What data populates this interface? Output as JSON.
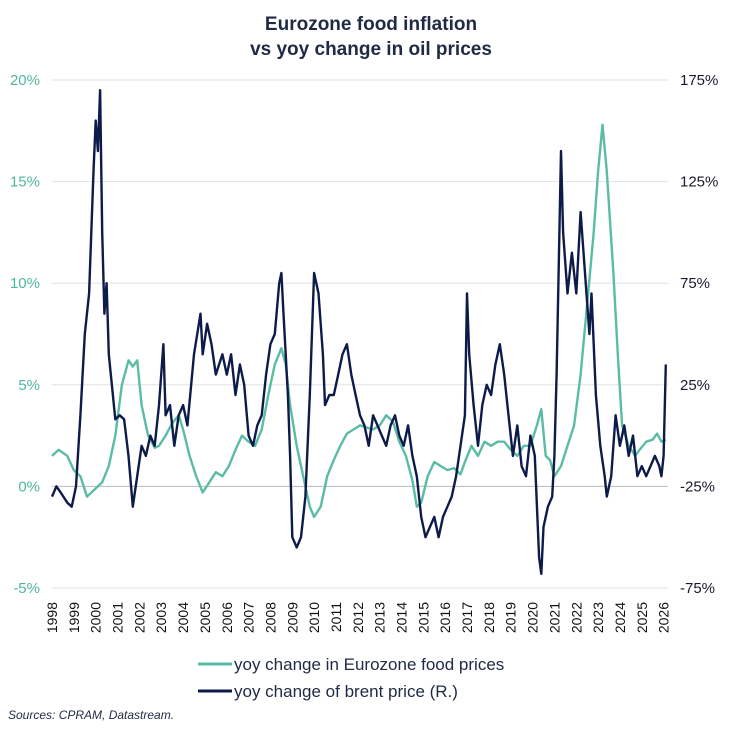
{
  "chart_data": {
    "type": "line",
    "title": [
      "Eurozone food inflation",
      "vs yoy change in oil prices"
    ],
    "x_ticks": [
      "1998",
      "1999",
      "2000",
      "2001",
      "2002",
      "2003",
      "2004",
      "2005",
      "2006",
      "2007",
      "2008",
      "2009",
      "2010",
      "2011",
      "2012",
      "2013",
      "2014",
      "2015",
      "2016",
      "2017",
      "2018",
      "2019",
      "2020",
      "2021",
      "2022",
      "2023",
      "2024",
      "2025",
      "2026"
    ],
    "y_left": {
      "ticks": [
        "-5%",
        "0%",
        "5%",
        "10%",
        "15%",
        "20%"
      ],
      "min": -5,
      "max": 20
    },
    "y_right": {
      "ticks": [
        "-75%",
        "-25%",
        "25%",
        "75%",
        "125%",
        "175%"
      ],
      "min": -75,
      "max": 175
    },
    "colors": {
      "food": "#5bbca5",
      "brent": "#0d1b4b",
      "grid": "#e3e3e3"
    },
    "legend_position": "bottom",
    "series": [
      {
        "name": "yoy change in Eurozone food prices",
        "axis": "left",
        "points": [
          [
            1998.0,
            1.5
          ],
          [
            1998.3,
            1.8
          ],
          [
            1998.7,
            1.5
          ],
          [
            1999.0,
            0.8
          ],
          [
            1999.3,
            0.5
          ],
          [
            1999.6,
            -0.5
          ],
          [
            1999.9,
            -0.2
          ],
          [
            2000.3,
            0.2
          ],
          [
            2000.6,
            1.0
          ],
          [
            2000.9,
            2.5
          ],
          [
            2001.2,
            5.0
          ],
          [
            2001.5,
            6.2
          ],
          [
            2001.7,
            5.9
          ],
          [
            2001.9,
            6.2
          ],
          [
            2002.1,
            4.0
          ],
          [
            2002.4,
            2.5
          ],
          [
            2002.7,
            1.9
          ],
          [
            2002.9,
            2.0
          ],
          [
            2003.2,
            2.5
          ],
          [
            2003.5,
            3.1
          ],
          [
            2003.8,
            3.5
          ],
          [
            2004.0,
            2.8
          ],
          [
            2004.3,
            1.5
          ],
          [
            2004.6,
            0.5
          ],
          [
            2004.9,
            -0.3
          ],
          [
            2005.2,
            0.2
          ],
          [
            2005.5,
            0.7
          ],
          [
            2005.8,
            0.5
          ],
          [
            2006.1,
            1.0
          ],
          [
            2006.4,
            1.8
          ],
          [
            2006.7,
            2.5
          ],
          [
            2007.0,
            2.2
          ],
          [
            2007.3,
            2.0
          ],
          [
            2007.6,
            2.8
          ],
          [
            2007.9,
            4.5
          ],
          [
            2008.2,
            6.0
          ],
          [
            2008.5,
            6.8
          ],
          [
            2008.7,
            6.0
          ],
          [
            2008.9,
            4.0
          ],
          [
            2009.2,
            2.0
          ],
          [
            2009.5,
            0.5
          ],
          [
            2009.8,
            -1.0
          ],
          [
            2010.0,
            -1.5
          ],
          [
            2010.3,
            -1.0
          ],
          [
            2010.6,
            0.5
          ],
          [
            2010.9,
            1.3
          ],
          [
            2011.2,
            2.0
          ],
          [
            2011.5,
            2.6
          ],
          [
            2011.8,
            2.8
          ],
          [
            2012.1,
            3.0
          ],
          [
            2012.4,
            2.9
          ],
          [
            2012.7,
            2.8
          ],
          [
            2013.0,
            3.0
          ],
          [
            2013.3,
            3.5
          ],
          [
            2013.6,
            3.2
          ],
          [
            2013.9,
            2.2
          ],
          [
            2014.2,
            1.5
          ],
          [
            2014.5,
            0.3
          ],
          [
            2014.7,
            -1.0
          ],
          [
            2014.9,
            -0.8
          ],
          [
            2015.2,
            0.5
          ],
          [
            2015.5,
            1.2
          ],
          [
            2015.8,
            1.0
          ],
          [
            2016.1,
            0.8
          ],
          [
            2016.4,
            0.9
          ],
          [
            2016.7,
            0.6
          ],
          [
            2016.9,
            1.2
          ],
          [
            2017.2,
            2.0
          ],
          [
            2017.5,
            1.5
          ],
          [
            2017.8,
            2.2
          ],
          [
            2018.1,
            2.0
          ],
          [
            2018.4,
            2.2
          ],
          [
            2018.7,
            2.2
          ],
          [
            2019.0,
            1.8
          ],
          [
            2019.3,
            1.5
          ],
          [
            2019.6,
            2.0
          ],
          [
            2019.9,
            2.0
          ],
          [
            2020.2,
            3.0
          ],
          [
            2020.4,
            3.8
          ],
          [
            2020.6,
            1.5
          ],
          [
            2020.8,
            1.3
          ],
          [
            2021.0,
            0.5
          ],
          [
            2021.3,
            1.0
          ],
          [
            2021.6,
            2.0
          ],
          [
            2021.9,
            3.0
          ],
          [
            2022.2,
            5.5
          ],
          [
            2022.5,
            9.0
          ],
          [
            2022.8,
            12.5
          ],
          [
            2023.0,
            15.5
          ],
          [
            2023.2,
            17.8
          ],
          [
            2023.4,
            15.5
          ],
          [
            2023.7,
            10.5
          ],
          [
            2023.9,
            6.5
          ],
          [
            2024.1,
            3.0
          ],
          [
            2024.4,
            2.0
          ],
          [
            2024.7,
            1.5
          ],
          [
            2024.9,
            1.8
          ],
          [
            2025.2,
            2.2
          ],
          [
            2025.5,
            2.3
          ],
          [
            2025.7,
            2.6
          ],
          [
            2025.9,
            2.2
          ],
          [
            2026.1,
            2.3
          ]
        ]
      },
      {
        "name": "yoy change of brent price (R.)",
        "axis": "right",
        "points": [
          [
            1998.0,
            -30
          ],
          [
            1998.2,
            -25
          ],
          [
            1998.4,
            -28
          ],
          [
            1998.7,
            -33
          ],
          [
            1998.9,
            -35
          ],
          [
            1999.1,
            -25
          ],
          [
            1999.3,
            10
          ],
          [
            1999.5,
            50
          ],
          [
            1999.7,
            70
          ],
          [
            1999.9,
            130
          ],
          [
            2000.0,
            155
          ],
          [
            2000.1,
            140
          ],
          [
            2000.2,
            170
          ],
          [
            2000.3,
            100
          ],
          [
            2000.4,
            60
          ],
          [
            2000.5,
            75
          ],
          [
            2000.6,
            40
          ],
          [
            2000.9,
            8
          ],
          [
            2001.1,
            10
          ],
          [
            2001.3,
            8
          ],
          [
            2001.5,
            -10
          ],
          [
            2001.7,
            -35
          ],
          [
            2001.9,
            -20
          ],
          [
            2002.1,
            -5
          ],
          [
            2002.3,
            -10
          ],
          [
            2002.5,
            0
          ],
          [
            2002.7,
            -5
          ],
          [
            2002.9,
            15
          ],
          [
            2003.1,
            45
          ],
          [
            2003.2,
            10
          ],
          [
            2003.4,
            15
          ],
          [
            2003.6,
            -5
          ],
          [
            2003.8,
            10
          ],
          [
            2004.0,
            15
          ],
          [
            2004.2,
            5
          ],
          [
            2004.5,
            40
          ],
          [
            2004.8,
            60
          ],
          [
            2004.9,
            40
          ],
          [
            2005.1,
            55
          ],
          [
            2005.3,
            45
          ],
          [
            2005.5,
            30
          ],
          [
            2005.8,
            40
          ],
          [
            2006.0,
            30
          ],
          [
            2006.2,
            40
          ],
          [
            2006.4,
            20
          ],
          [
            2006.6,
            35
          ],
          [
            2006.8,
            25
          ],
          [
            2007.0,
            0
          ],
          [
            2007.2,
            -5
          ],
          [
            2007.4,
            5
          ],
          [
            2007.6,
            10
          ],
          [
            2007.8,
            30
          ],
          [
            2008.0,
            45
          ],
          [
            2008.2,
            50
          ],
          [
            2008.4,
            75
          ],
          [
            2008.5,
            80
          ],
          [
            2008.6,
            60
          ],
          [
            2008.8,
            20
          ],
          [
            2008.9,
            -10
          ],
          [
            2009.0,
            -50
          ],
          [
            2009.2,
            -55
          ],
          [
            2009.4,
            -50
          ],
          [
            2009.6,
            -30
          ],
          [
            2009.8,
            20
          ],
          [
            2010.0,
            80
          ],
          [
            2010.2,
            70
          ],
          [
            2010.4,
            40
          ],
          [
            2010.5,
            15
          ],
          [
            2010.7,
            20
          ],
          [
            2010.9,
            20
          ],
          [
            2011.1,
            30
          ],
          [
            2011.3,
            40
          ],
          [
            2011.5,
            45
          ],
          [
            2011.7,
            30
          ],
          [
            2011.9,
            20
          ],
          [
            2012.1,
            10
          ],
          [
            2012.3,
            5
          ],
          [
            2012.5,
            -5
          ],
          [
            2012.7,
            10
          ],
          [
            2012.9,
            5
          ],
          [
            2013.1,
            0
          ],
          [
            2013.3,
            -5
          ],
          [
            2013.5,
            5
          ],
          [
            2013.7,
            10
          ],
          [
            2013.9,
            0
          ],
          [
            2014.1,
            -5
          ],
          [
            2014.3,
            5
          ],
          [
            2014.5,
            -10
          ],
          [
            2014.7,
            -20
          ],
          [
            2014.9,
            -40
          ],
          [
            2015.1,
            -50
          ],
          [
            2015.3,
            -45
          ],
          [
            2015.5,
            -40
          ],
          [
            2015.7,
            -50
          ],
          [
            2015.9,
            -40
          ],
          [
            2016.1,
            -35
          ],
          [
            2016.3,
            -30
          ],
          [
            2016.5,
            -20
          ],
          [
            2016.7,
            -5
          ],
          [
            2016.9,
            10
          ],
          [
            2017.0,
            70
          ],
          [
            2017.1,
            40
          ],
          [
            2017.3,
            15
          ],
          [
            2017.5,
            -5
          ],
          [
            2017.7,
            15
          ],
          [
            2017.9,
            25
          ],
          [
            2018.1,
            20
          ],
          [
            2018.3,
            35
          ],
          [
            2018.5,
            45
          ],
          [
            2018.7,
            30
          ],
          [
            2018.9,
            10
          ],
          [
            2019.1,
            -10
          ],
          [
            2019.3,
            5
          ],
          [
            2019.5,
            -15
          ],
          [
            2019.7,
            -20
          ],
          [
            2019.9,
            0
          ],
          [
            2020.1,
            -10
          ],
          [
            2020.3,
            -60
          ],
          [
            2020.4,
            -68
          ],
          [
            2020.5,
            -45
          ],
          [
            2020.7,
            -35
          ],
          [
            2020.9,
            -30
          ],
          [
            2021.0,
            -10
          ],
          [
            2021.1,
            30
          ],
          [
            2021.3,
            140
          ],
          [
            2021.4,
            100
          ],
          [
            2021.6,
            70
          ],
          [
            2021.8,
            90
          ],
          [
            2022.0,
            70
          ],
          [
            2022.2,
            110
          ],
          [
            2022.4,
            80
          ],
          [
            2022.6,
            50
          ],
          [
            2022.7,
            70
          ],
          [
            2022.9,
            20
          ],
          [
            2023.1,
            -5
          ],
          [
            2023.3,
            -20
          ],
          [
            2023.4,
            -30
          ],
          [
            2023.6,
            -20
          ],
          [
            2023.8,
            10
          ],
          [
            2024.0,
            -5
          ],
          [
            2024.2,
            5
          ],
          [
            2024.4,
            -10
          ],
          [
            2024.6,
            0
          ],
          [
            2024.8,
            -20
          ],
          [
            2025.0,
            -15
          ],
          [
            2025.2,
            -20
          ],
          [
            2025.4,
            -15
          ],
          [
            2025.6,
            -10
          ],
          [
            2025.8,
            -15
          ],
          [
            2025.9,
            -20
          ],
          [
            2026.0,
            -10
          ],
          [
            2026.1,
            35
          ]
        ]
      }
    ]
  },
  "source": "Sources: CPRAM, Datastream."
}
